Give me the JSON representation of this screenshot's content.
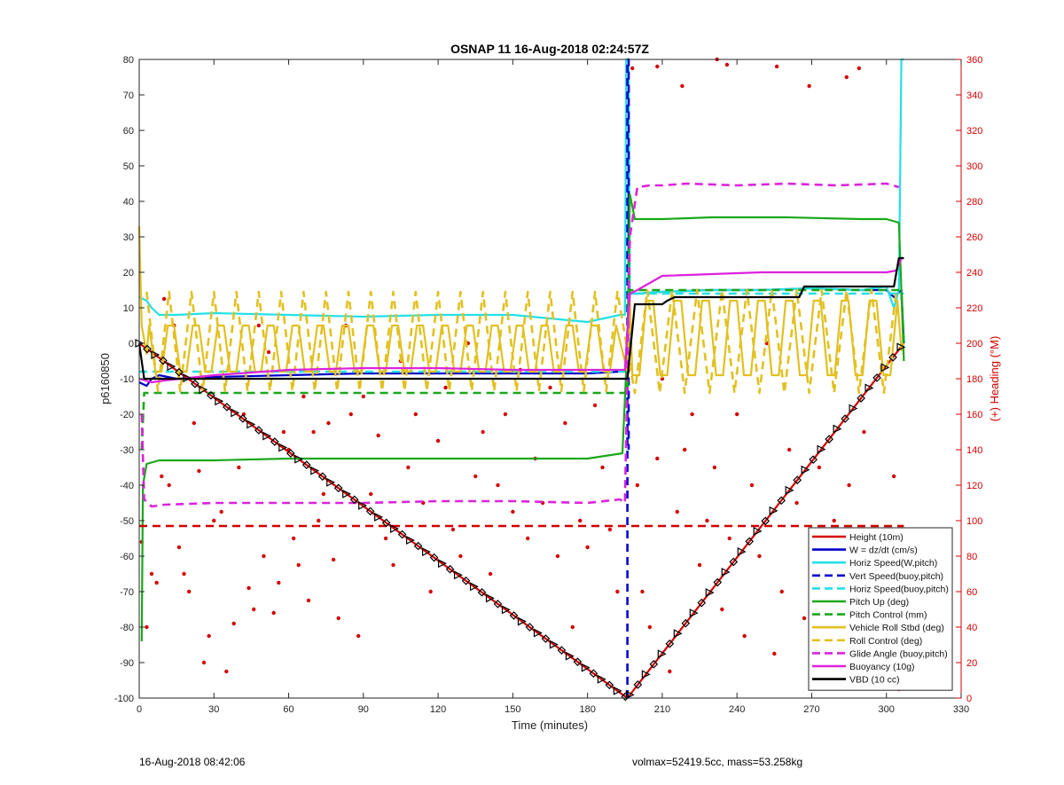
{
  "footer": {
    "left": "16-Aug-2018 08:42:06",
    "right": "volmax=52419.5cc, mass=53.258kg"
  },
  "colors": {
    "red": "#d40000",
    "blue": "#0000cc",
    "cyan": "#22e0e8",
    "green": "#19a81a",
    "yellow": "#e2c020",
    "magenta": "#dd22dd",
    "black": "#000000",
    "axis_right": "#d40000"
  },
  "chart_data": {
    "type": "line",
    "title": "OSNAP 11 16-Aug-2018 02:24:57Z",
    "xlabel": "Time (minutes)",
    "ylabel": "p6160850",
    "ylabel_right": "(+) Heading (°M)",
    "xlim": [
      0,
      330
    ],
    "ylim": [
      -100,
      80
    ],
    "ylim_right": [
      0,
      360
    ],
    "xticks": [
      0,
      30,
      60,
      90,
      120,
      150,
      180,
      210,
      240,
      270,
      300,
      330
    ],
    "yticks": [
      -100,
      -90,
      -80,
      -70,
      -60,
      -50,
      -40,
      -30,
      -20,
      -10,
      0,
      10,
      20,
      30,
      40,
      50,
      60,
      70,
      80
    ],
    "yticks_right": [
      0,
      20,
      40,
      60,
      80,
      100,
      120,
      140,
      160,
      180,
      200,
      220,
      240,
      260,
      280,
      300,
      320,
      340,
      360
    ],
    "grid": false,
    "legend_position": "bottom-right",
    "series": [
      {
        "name": "Height (10m)",
        "color": "#d40000",
        "dash": "solid",
        "x": [
          0,
          196,
          307
        ],
        "y": [
          0,
          -100,
          0
        ]
      },
      {
        "name": "W = dz/dt (cm/s)",
        "color": "#0000cc",
        "dash": "solid",
        "x": [
          0,
          3,
          5,
          8,
          15,
          30,
          60,
          90,
          120,
          150,
          180,
          193,
          195,
          197,
          200,
          210,
          230,
          250,
          270,
          290,
          300,
          303,
          306,
          307
        ],
        "y": [
          -11,
          -12,
          -10,
          -9,
          -10,
          -9.5,
          -9,
          -8.5,
          -8.5,
          -8.5,
          -8.5,
          -8,
          -8,
          14,
          14,
          14.5,
          15,
          15,
          15.5,
          15,
          15,
          13,
          15,
          0
        ]
      },
      {
        "name": "Horiz Speed(W,pitch)",
        "color": "#22e0e8",
        "dash": "solid",
        "x": [
          0,
          3,
          5,
          8,
          15,
          30,
          60,
          90,
          120,
          150,
          180,
          193,
          195,
          195.5,
          196.5,
          197,
          200,
          210,
          230,
          250,
          270,
          290,
          300,
          303,
          305,
          306,
          307
        ],
        "y": [
          13,
          12,
          10,
          8,
          8,
          8.5,
          8,
          7.5,
          8,
          8,
          6,
          8,
          8,
          80,
          80,
          14,
          14,
          14.5,
          15,
          15,
          15.5,
          15,
          16,
          10,
          15,
          80,
          80
        ]
      },
      {
        "name": "Vert Speed(buoy,pitch)",
        "color": "#0000cc",
        "dash": "dashed",
        "x": [
          196,
          196,
          196.5,
          196.5
        ],
        "y": [
          -100,
          80,
          80,
          -30
        ]
      },
      {
        "name": "Horiz Speed(buoy,pitch)",
        "color": "#22e0e8",
        "dash": "dashed",
        "x": [
          0,
          196,
          197,
          307
        ],
        "y": [
          -8,
          -8,
          14,
          14
        ]
      },
      {
        "name": "Pitch Up (deg)",
        "color": "#19a81a",
        "dash": "solid",
        "x": [
          1,
          1.5,
          3,
          8,
          30,
          60,
          90,
          120,
          150,
          180,
          194,
          196,
          197,
          199,
          203,
          210,
          230,
          260,
          290,
          300,
          305,
          306,
          307
        ],
        "y": [
          -84,
          -40,
          -34,
          -33,
          -33,
          -32.5,
          -32.5,
          -32.5,
          -32.5,
          -32.5,
          -31,
          0,
          42,
          35,
          35,
          35,
          35.5,
          35.5,
          35,
          35,
          34,
          15,
          -5
        ]
      },
      {
        "name": "Pitch Control (mm)",
        "color": "#19a81a",
        "dash": "dashed",
        "x": [
          1,
          2,
          3,
          194,
          196,
          197,
          306,
          307
        ],
        "y": [
          -30,
          -14,
          -14,
          -14,
          -14,
          15,
          15,
          0
        ]
      },
      {
        "name": "Vehicle Roll Stbd (deg)",
        "color": "#e2c020",
        "dash": "solid",
        "x": [
          0,
          2,
          4,
          196,
          198,
          305,
          307
        ],
        "y": [
          33,
          0,
          -3,
          -8,
          18,
          -10,
          0
        ]
      },
      {
        "name": "Roll Control (deg)",
        "color": "#e2c020",
        "dash": "dashed",
        "x": [
          2,
          4,
          194,
          198,
          305
        ],
        "y": [
          15,
          -13,
          -13,
          15,
          -15
        ]
      },
      {
        "name": "Glide Angle (buoy,pitch)",
        "color": "#dd22dd",
        "dash": "dashed",
        "x": [
          1,
          2,
          5,
          10,
          30,
          60,
          90,
          120,
          150,
          180,
          193,
          195,
          197,
          200,
          205,
          210,
          220,
          240,
          260,
          280,
          300,
          305
        ],
        "y": [
          -20,
          -44,
          -46,
          -45.5,
          -45,
          -45,
          -45,
          -44.5,
          -44.5,
          -45,
          -44,
          -45,
          30,
          44,
          44.5,
          44.5,
          45,
          44.5,
          45,
          44.5,
          45,
          44
        ]
      },
      {
        "name": "Buoyancy (10g)",
        "color": "#dd22dd",
        "dash": "solid",
        "x": [
          0,
          5,
          10,
          30,
          60,
          90,
          120,
          150,
          180,
          193,
          195,
          197,
          200,
          210,
          230,
          250,
          270,
          290,
          300,
          304,
          306,
          307
        ],
        "y": [
          -10,
          -11,
          -10.5,
          -9,
          -7.5,
          -7,
          -7,
          -7.5,
          -7.5,
          -7.5,
          -7.5,
          14,
          15,
          19,
          19.5,
          20,
          20,
          20,
          20,
          20.5,
          24,
          24
        ]
      },
      {
        "name": "VBD (10 cc)",
        "color": "#000000",
        "dash": "solid",
        "x": [
          0,
          1,
          2,
          10,
          60,
          194,
          196,
          199,
          204,
          210,
          212,
          215,
          219,
          265,
          267,
          303,
          305,
          307
        ],
        "y": [
          0,
          -5,
          -10,
          -10,
          -10,
          -10,
          -10,
          11,
          11,
          11,
          12,
          13,
          13,
          13,
          16,
          16,
          24,
          24
        ]
      }
    ],
    "heading_series": {
      "name": "Heading",
      "color": "#d40000",
      "axis": "right",
      "x": [
        1,
        3,
        5,
        7,
        9,
        10,
        12,
        14,
        16,
        18,
        20,
        22,
        24,
        26,
        28,
        30,
        33,
        35,
        38,
        40,
        42,
        44,
        46,
        48,
        50,
        52,
        54,
        56,
        58,
        60,
        62,
        64,
        66,
        68,
        70,
        72,
        74,
        76,
        78,
        80,
        83,
        85,
        88,
        90,
        93,
        96,
        99,
        102,
        105,
        108,
        111,
        114,
        117,
        120,
        123,
        126,
        129,
        132,
        135,
        138,
        141,
        144,
        147,
        150,
        153,
        156,
        159,
        162,
        165,
        168,
        171,
        174,
        177,
        180,
        183,
        186,
        189,
        192,
        198,
        200,
        202,
        205,
        208,
        210,
        213,
        216,
        219,
        222,
        225,
        228,
        231,
        234,
        237,
        240,
        243,
        246,
        249,
        252,
        255,
        258,
        261,
        264,
        267,
        270,
        273,
        276,
        279,
        282,
        285,
        288,
        291,
        294,
        297,
        300,
        303,
        305,
        208,
        218,
        232,
        236,
        256,
        269,
        284,
        289
      ],
      "y": [
        88,
        40,
        70,
        65,
        125,
        225,
        120,
        210,
        85,
        70,
        60,
        155,
        128,
        20,
        35,
        100,
        105,
        15,
        42,
        130,
        160,
        62,
        50,
        210,
        80,
        195,
        48,
        65,
        150,
        140,
        90,
        75,
        170,
        55,
        150,
        100,
        115,
        155,
        78,
        45,
        210,
        160,
        35,
        170,
        115,
        148,
        90,
        75,
        190,
        130,
        160,
        110,
        60,
        145,
        175,
        95,
        80,
        200,
        125,
        150,
        70,
        120,
        160,
        105,
        185,
        90,
        135,
        110,
        175,
        80,
        155,
        40,
        100,
        85,
        165,
        130,
        95,
        60,
        355,
        120,
        60,
        40,
        135,
        180,
        15,
        105,
        140,
        160,
        75,
        100,
        130,
        50,
        90,
        160,
        35,
        120,
        80,
        200,
        25,
        60,
        140,
        110,
        45,
        75,
        130,
        95,
        100,
        60,
        120,
        20,
        150,
        40,
        15,
        75,
        125,
        5,
        356,
        345,
        360,
        357,
        356,
        345,
        350,
        355
      ]
    }
  }
}
